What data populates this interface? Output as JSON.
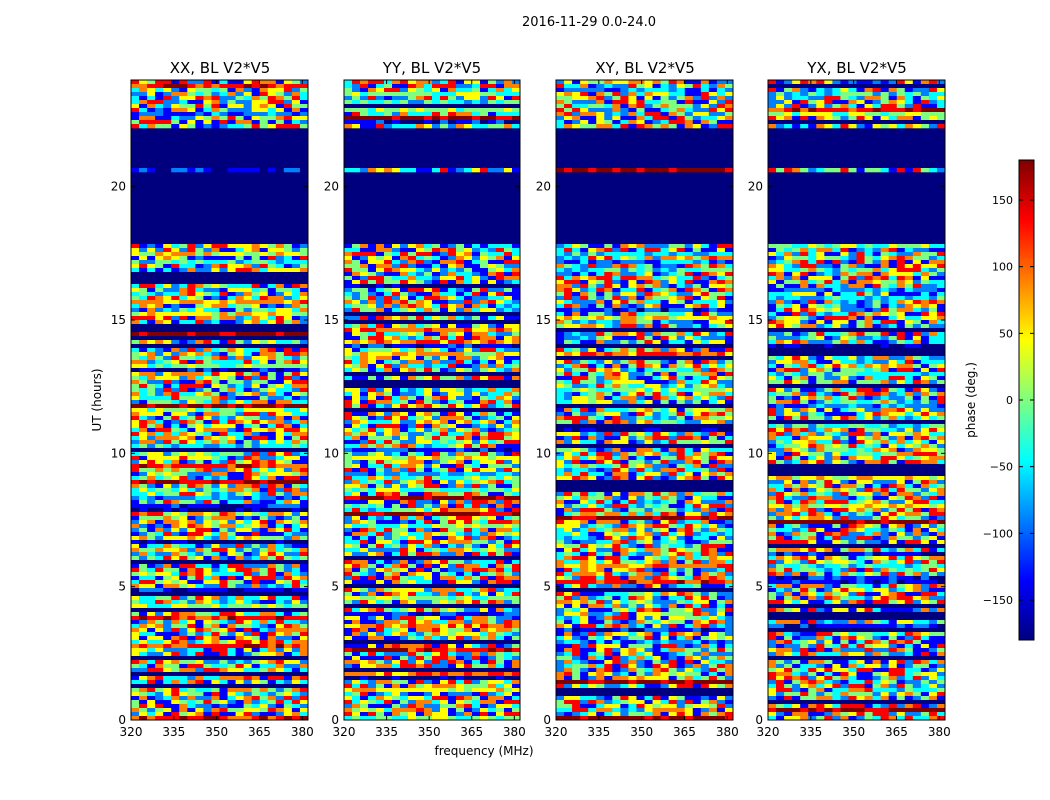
{
  "chart_data": {
    "type": "heatmap",
    "suptitle": "2016-11-29 0.0-24.0",
    "panels": [
      {
        "title": "XX, BL V2*V5"
      },
      {
        "title": "YY, BL V2*V5"
      },
      {
        "title": "XY, BL V2*V5"
      },
      {
        "title": "YX, BL V2*V5"
      }
    ],
    "xlabel": "frequency (MHz)",
    "ylabel": "UT (hours)",
    "xlim": [
      320,
      382
    ],
    "xticks": [
      320,
      335,
      350,
      365,
      380
    ],
    "ylim": [
      0,
      24
    ],
    "yticks": [
      0,
      5,
      10,
      15,
      20
    ],
    "colorbar": {
      "label": "phase (deg.)",
      "range": [
        -180,
        180
      ],
      "ticks": [
        150,
        100,
        50,
        0,
        -50,
        -100,
        -150
      ],
      "tick_labels": [
        "150",
        "100",
        "50",
        "0",
        "−50",
        "−100",
        "−150"
      ],
      "colormap": "jet"
    },
    "flagged_color": "#00007f",
    "flagged_hours": [
      [
        17.9,
        20.6
      ],
      [
        20.75,
        22.2
      ]
    ],
    "colors": [
      "#00007f",
      "#0000ff",
      "#007fff",
      "#00ffff",
      "#7fff7f",
      "#ffff00",
      "#ff7f00",
      "#ff0000",
      "#7f0000"
    ]
  }
}
